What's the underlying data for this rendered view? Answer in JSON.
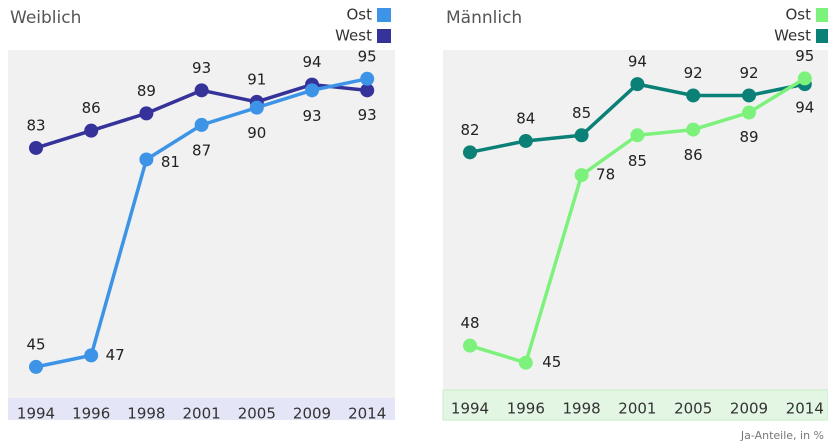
{
  "chart_data": [
    {
      "type": "line",
      "title": "Weiblich",
      "categories": [
        "1994",
        "1996",
        "1998",
        "2001",
        "2005",
        "2009",
        "2014"
      ],
      "series": [
        {
          "name": "Ost",
          "color": "#3d94e6",
          "values": [
            45,
            47,
            81,
            87,
            90,
            93,
            95
          ]
        },
        {
          "name": "West",
          "color": "#35339a",
          "values": [
            83,
            86,
            89,
            93,
            91,
            94,
            93
          ]
        }
      ],
      "ylim": [
        39.6,
        100
      ]
    },
    {
      "type": "line",
      "title": "Männlich",
      "categories": [
        "1994",
        "1996",
        "1998",
        "2001",
        "2005",
        "2009",
        "2014"
      ],
      "series": [
        {
          "name": "Ost",
          "color": "#7cf27c",
          "values": [
            48,
            45,
            78,
            85,
            86,
            89,
            95
          ]
        },
        {
          "name": "West",
          "color": "#0b8077",
          "values": [
            82,
            84,
            85,
            94,
            92,
            92,
            94
          ]
        }
      ],
      "ylim": [
        40.2,
        100
      ]
    }
  ],
  "footnote": "Ja-Anteile, in %"
}
